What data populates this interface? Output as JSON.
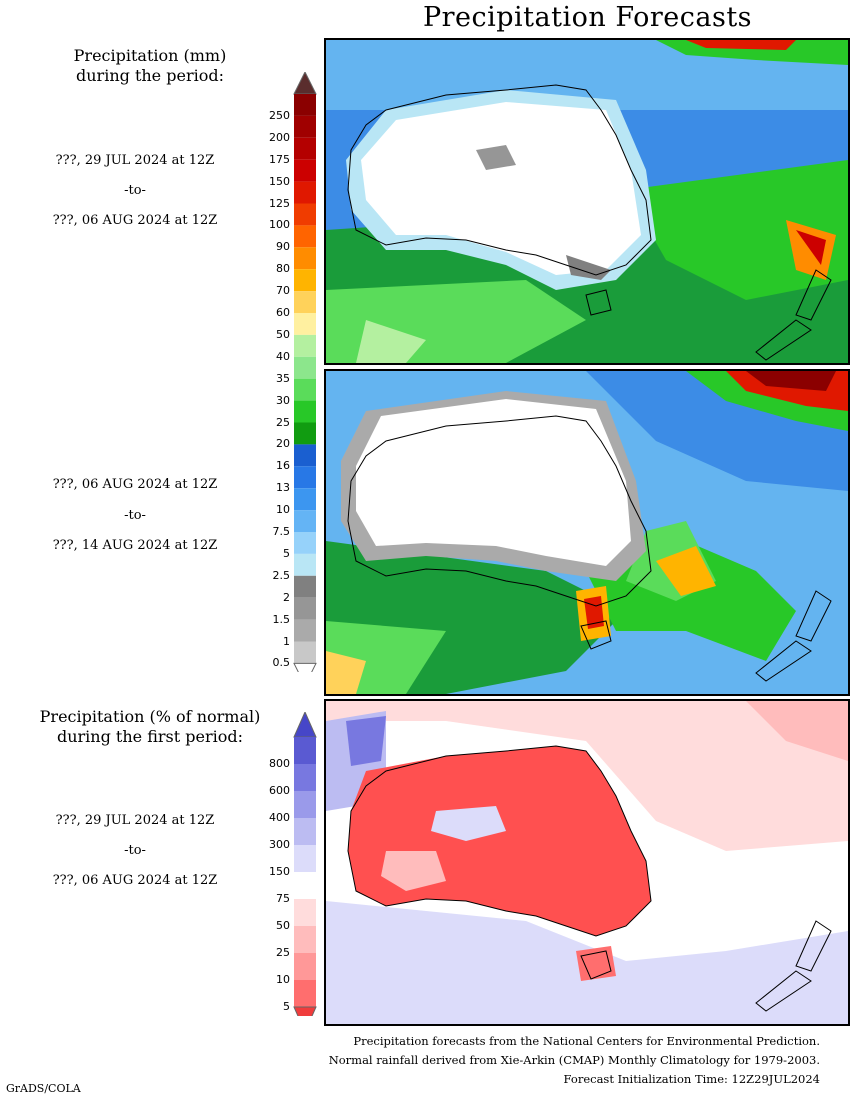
{
  "title": "Precipitation Forecasts",
  "left_labels": {
    "mm_heading_line1": "Precipitation (mm)",
    "mm_heading_line2": "during the period:",
    "pct_heading_line1": "Precipitation (% of normal)",
    "pct_heading_line2": "during the first period:"
  },
  "periods": [
    {
      "start": "???, 29 JUL 2024 at 12Z",
      "sep": "-to-",
      "end": "???, 06 AUG 2024 at 12Z"
    },
    {
      "start": "???, 06 AUG 2024 at 12Z",
      "sep": "-to-",
      "end": "???, 14 AUG 2024 at 12Z"
    },
    {
      "start": "???, 29 JUL 2024 at 12Z",
      "sep": "-to-",
      "end": "???, 06 AUG 2024 at 12Z"
    }
  ],
  "precip_colorbar": {
    "labels": [
      "250",
      "200",
      "175",
      "150",
      "125",
      "100",
      "90",
      "80",
      "70",
      "60",
      "50",
      "40",
      "35",
      "30",
      "25",
      "20",
      "16",
      "13",
      "10",
      "7.5",
      "5",
      "2.5",
      "2",
      "1.5",
      "1",
      "0.5"
    ],
    "colors": [
      "#8b0000",
      "#a00000",
      "#b40000",
      "#cc0000",
      "#e01800",
      "#f03c00",
      "#ff6400",
      "#ff8c00",
      "#ffb400",
      "#ffd25a",
      "#fff0a0",
      "#b4f0a0",
      "#8ce68c",
      "#5adc5a",
      "#28c828",
      "#119c11",
      "#1a5fd0",
      "#2878e6",
      "#3c96f0",
      "#64b4f5",
      "#96d2fa",
      "#b9e6f5",
      "#808080",
      "#969696",
      "#aaaaaa",
      "#c8c8c8"
    ],
    "top_arrow": "#5a2d2d",
    "bottom_arrow": "#ffffff"
  },
  "pct_colorbar": {
    "labels": [
      "800",
      "600",
      "400",
      "300",
      "150",
      "75",
      "50",
      "25",
      "10",
      "5"
    ],
    "colors": [
      "#5a5ad2",
      "#7878e0",
      "#9a9aea",
      "#bcbcf2",
      "#dcdcfa",
      "#ffffff",
      "#ffdcdc",
      "#ffbcbc",
      "#ff9898",
      "#ff6e6e"
    ],
    "top_arrow": "#4646c8",
    "bottom_arrow": "#f03c3c"
  },
  "footer": {
    "line1": "Precipitation forecasts from the National Centers for Environmental Prediction.",
    "line2": "Normal rainfall derived from Xie-Arkin (CMAP) Monthly Climatology for 1979-2003.",
    "line3": "Forecast Initialization Time: 12Z29JUL2024"
  },
  "credit": "GrADS/COLA"
}
